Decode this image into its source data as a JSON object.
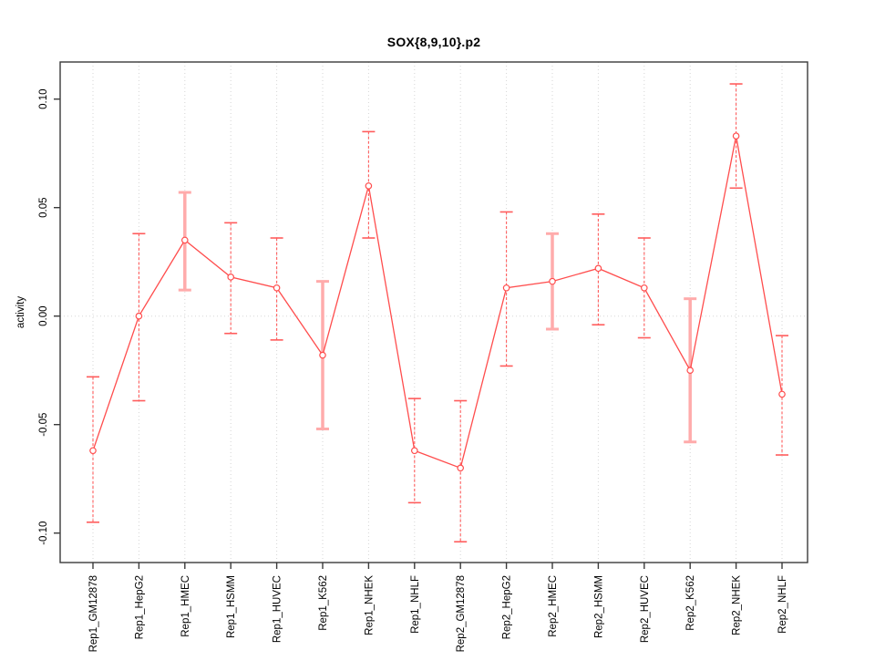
{
  "chart_data": {
    "type": "line",
    "title": "SOX{8,9,10}.p2",
    "xlabel": "",
    "ylabel": "activity",
    "legend": "none",
    "grid": {
      "vertical_dotted_at_each_category": true,
      "horizontal_dotted_at_zero": true
    },
    "marker": "open-circle",
    "categories": [
      "Rep1_GM12878",
      "Rep1_HepG2",
      "Rep1_HMEC",
      "Rep1_HSMM",
      "Rep1_HUVEC",
      "Rep1_K562",
      "Rep1_NHEK",
      "Rep1_NHLF",
      "Rep2_GM12878",
      "Rep2_HepG2",
      "Rep2_HMEC",
      "Rep2_HSMM",
      "Rep2_HUVEC",
      "Rep2_K562",
      "Rep2_NHEK",
      "Rep2_NHLF"
    ],
    "series": [
      {
        "name": "activity",
        "values": [
          -0.062,
          0.0,
          0.035,
          0.018,
          0.013,
          -0.018,
          0.06,
          -0.062,
          -0.07,
          0.013,
          0.016,
          0.022,
          0.013,
          -0.025,
          0.083,
          -0.036
        ],
        "error_upper": [
          -0.028,
          0.038,
          0.057,
          0.043,
          0.036,
          0.016,
          0.085,
          -0.038,
          -0.039,
          0.048,
          0.038,
          0.047,
          0.036,
          0.008,
          0.107,
          -0.009
        ],
        "error_lower": [
          -0.095,
          -0.039,
          0.012,
          -0.008,
          -0.011,
          -0.052,
          0.036,
          -0.086,
          -0.104,
          -0.023,
          -0.006,
          -0.004,
          -0.01,
          -0.058,
          0.059,
          -0.064
        ],
        "wide_error_bar": [
          false,
          false,
          true,
          false,
          false,
          true,
          false,
          false,
          false,
          false,
          true,
          false,
          false,
          true,
          false,
          false
        ]
      }
    ],
    "ylim": [
      -0.113,
      0.117
    ],
    "yticks": [
      -0.1,
      -0.05,
      0.0,
      0.05,
      0.1
    ],
    "ytick_labels": [
      "-0.10",
      "-0.05",
      "0.00",
      "0.05",
      "0.10"
    ],
    "colors": {
      "line": "#ff4d4d",
      "marker": "#ff4d4d",
      "error_bar": "#ff5c5c",
      "error_bar_wide": "#ffabab",
      "grid": "#d6d6d6",
      "axis": "#3a3a3a",
      "text": "#000000",
      "background": "#ffffff"
    }
  }
}
